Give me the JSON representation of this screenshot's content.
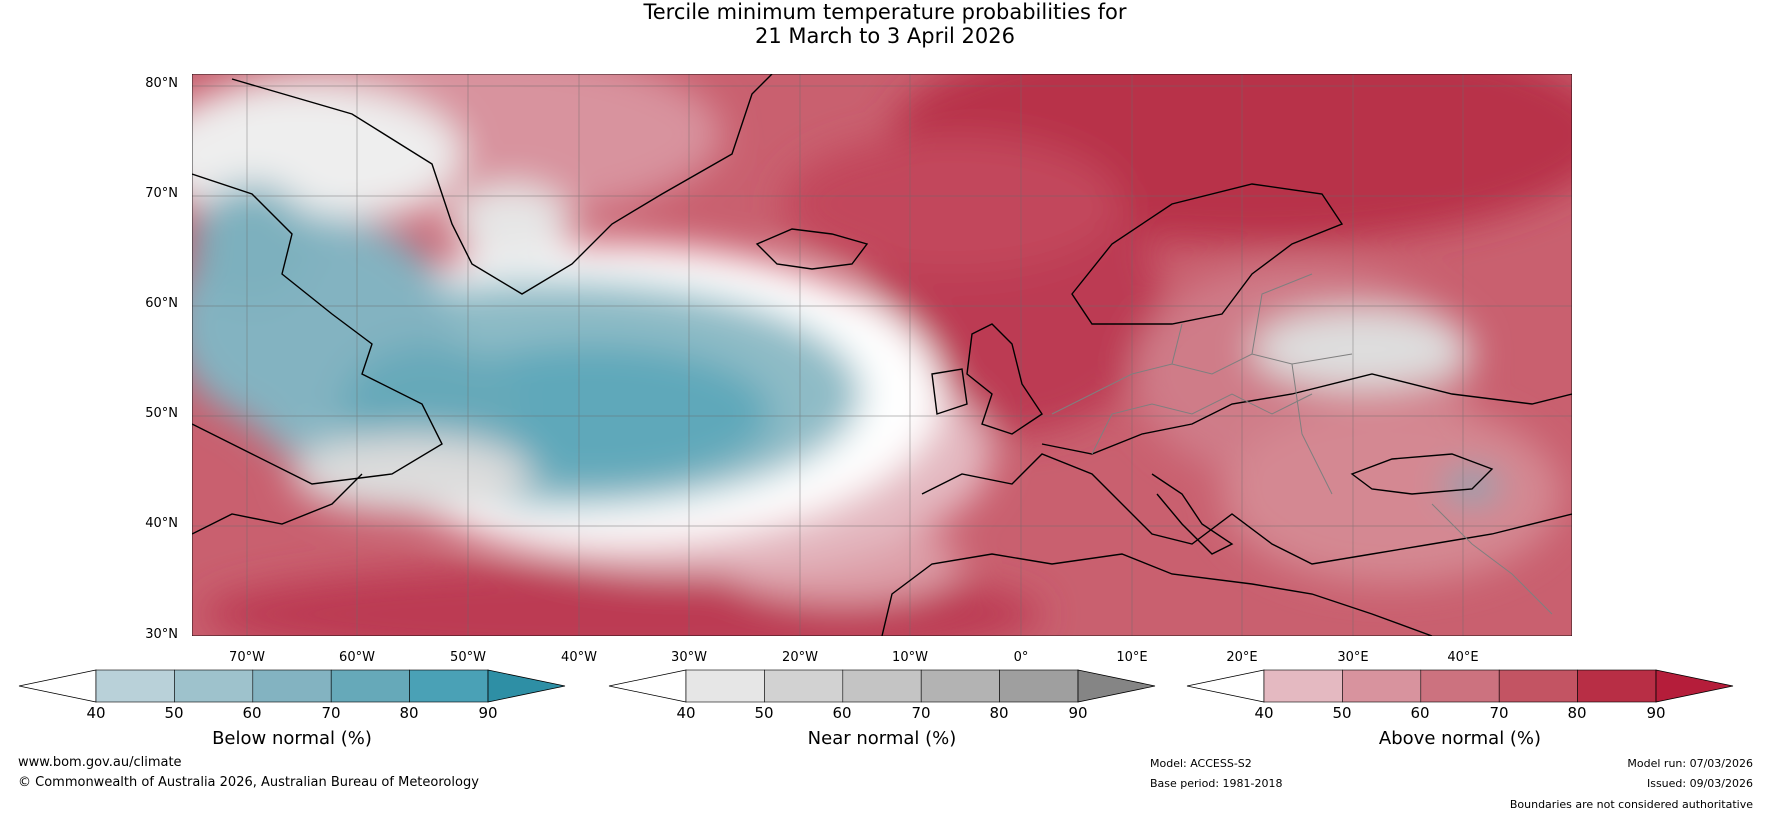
{
  "title": {
    "line1": "Tercile minimum temperature probabilities for",
    "line2": "21 March to 3 April 2026"
  },
  "axes": {
    "lat_labels": [
      "80°N",
      "70°N",
      "60°N",
      "50°N",
      "40°N",
      "30°N"
    ],
    "lon_labels": [
      "70°W",
      "60°W",
      "50°W",
      "40°W",
      "30°W",
      "20°W",
      "10°W",
      "0°",
      "10°E",
      "20°E",
      "30°E",
      "40°E"
    ]
  },
  "colorbars": [
    {
      "label": "Below normal (%)",
      "ticks": [
        "40",
        "50",
        "60",
        "70",
        "80",
        "90"
      ],
      "colors": [
        "#ffffff",
        "#b9d1d9",
        "#9ec2cc",
        "#83b3c1",
        "#66a9b9",
        "#4aa1b6",
        "#2e8fa5"
      ]
    },
    {
      "label": "Near normal (%)",
      "ticks": [
        "40",
        "50",
        "60",
        "70",
        "80",
        "90"
      ],
      "colors": [
        "#ffffff",
        "#e6e6e6",
        "#d2d2d2",
        "#c4c4c4",
        "#b3b3b3",
        "#9f9f9f",
        "#858585"
      ]
    },
    {
      "label": "Above normal (%)",
      "ticks": [
        "40",
        "50",
        "60",
        "70",
        "80",
        "90"
      ],
      "colors": [
        "#ffffff",
        "#e4b9c1",
        "#d8939e",
        "#cc727f",
        "#c35463",
        "#b82e45",
        "#b51d3a"
      ]
    }
  ],
  "footer": {
    "website": "www.bom.gov.au/climate",
    "copyright": "© Commonwealth of Australia 2026, Australian Bureau of Meteorology",
    "model": "Model: ACCESS-S2",
    "base_period": "Base period: 1981-2018",
    "model_run": "Model run: 07/03/2026",
    "issued": "Issued: 09/03/2026",
    "disclaimer": "Boundaries are not considered authoritative"
  }
}
